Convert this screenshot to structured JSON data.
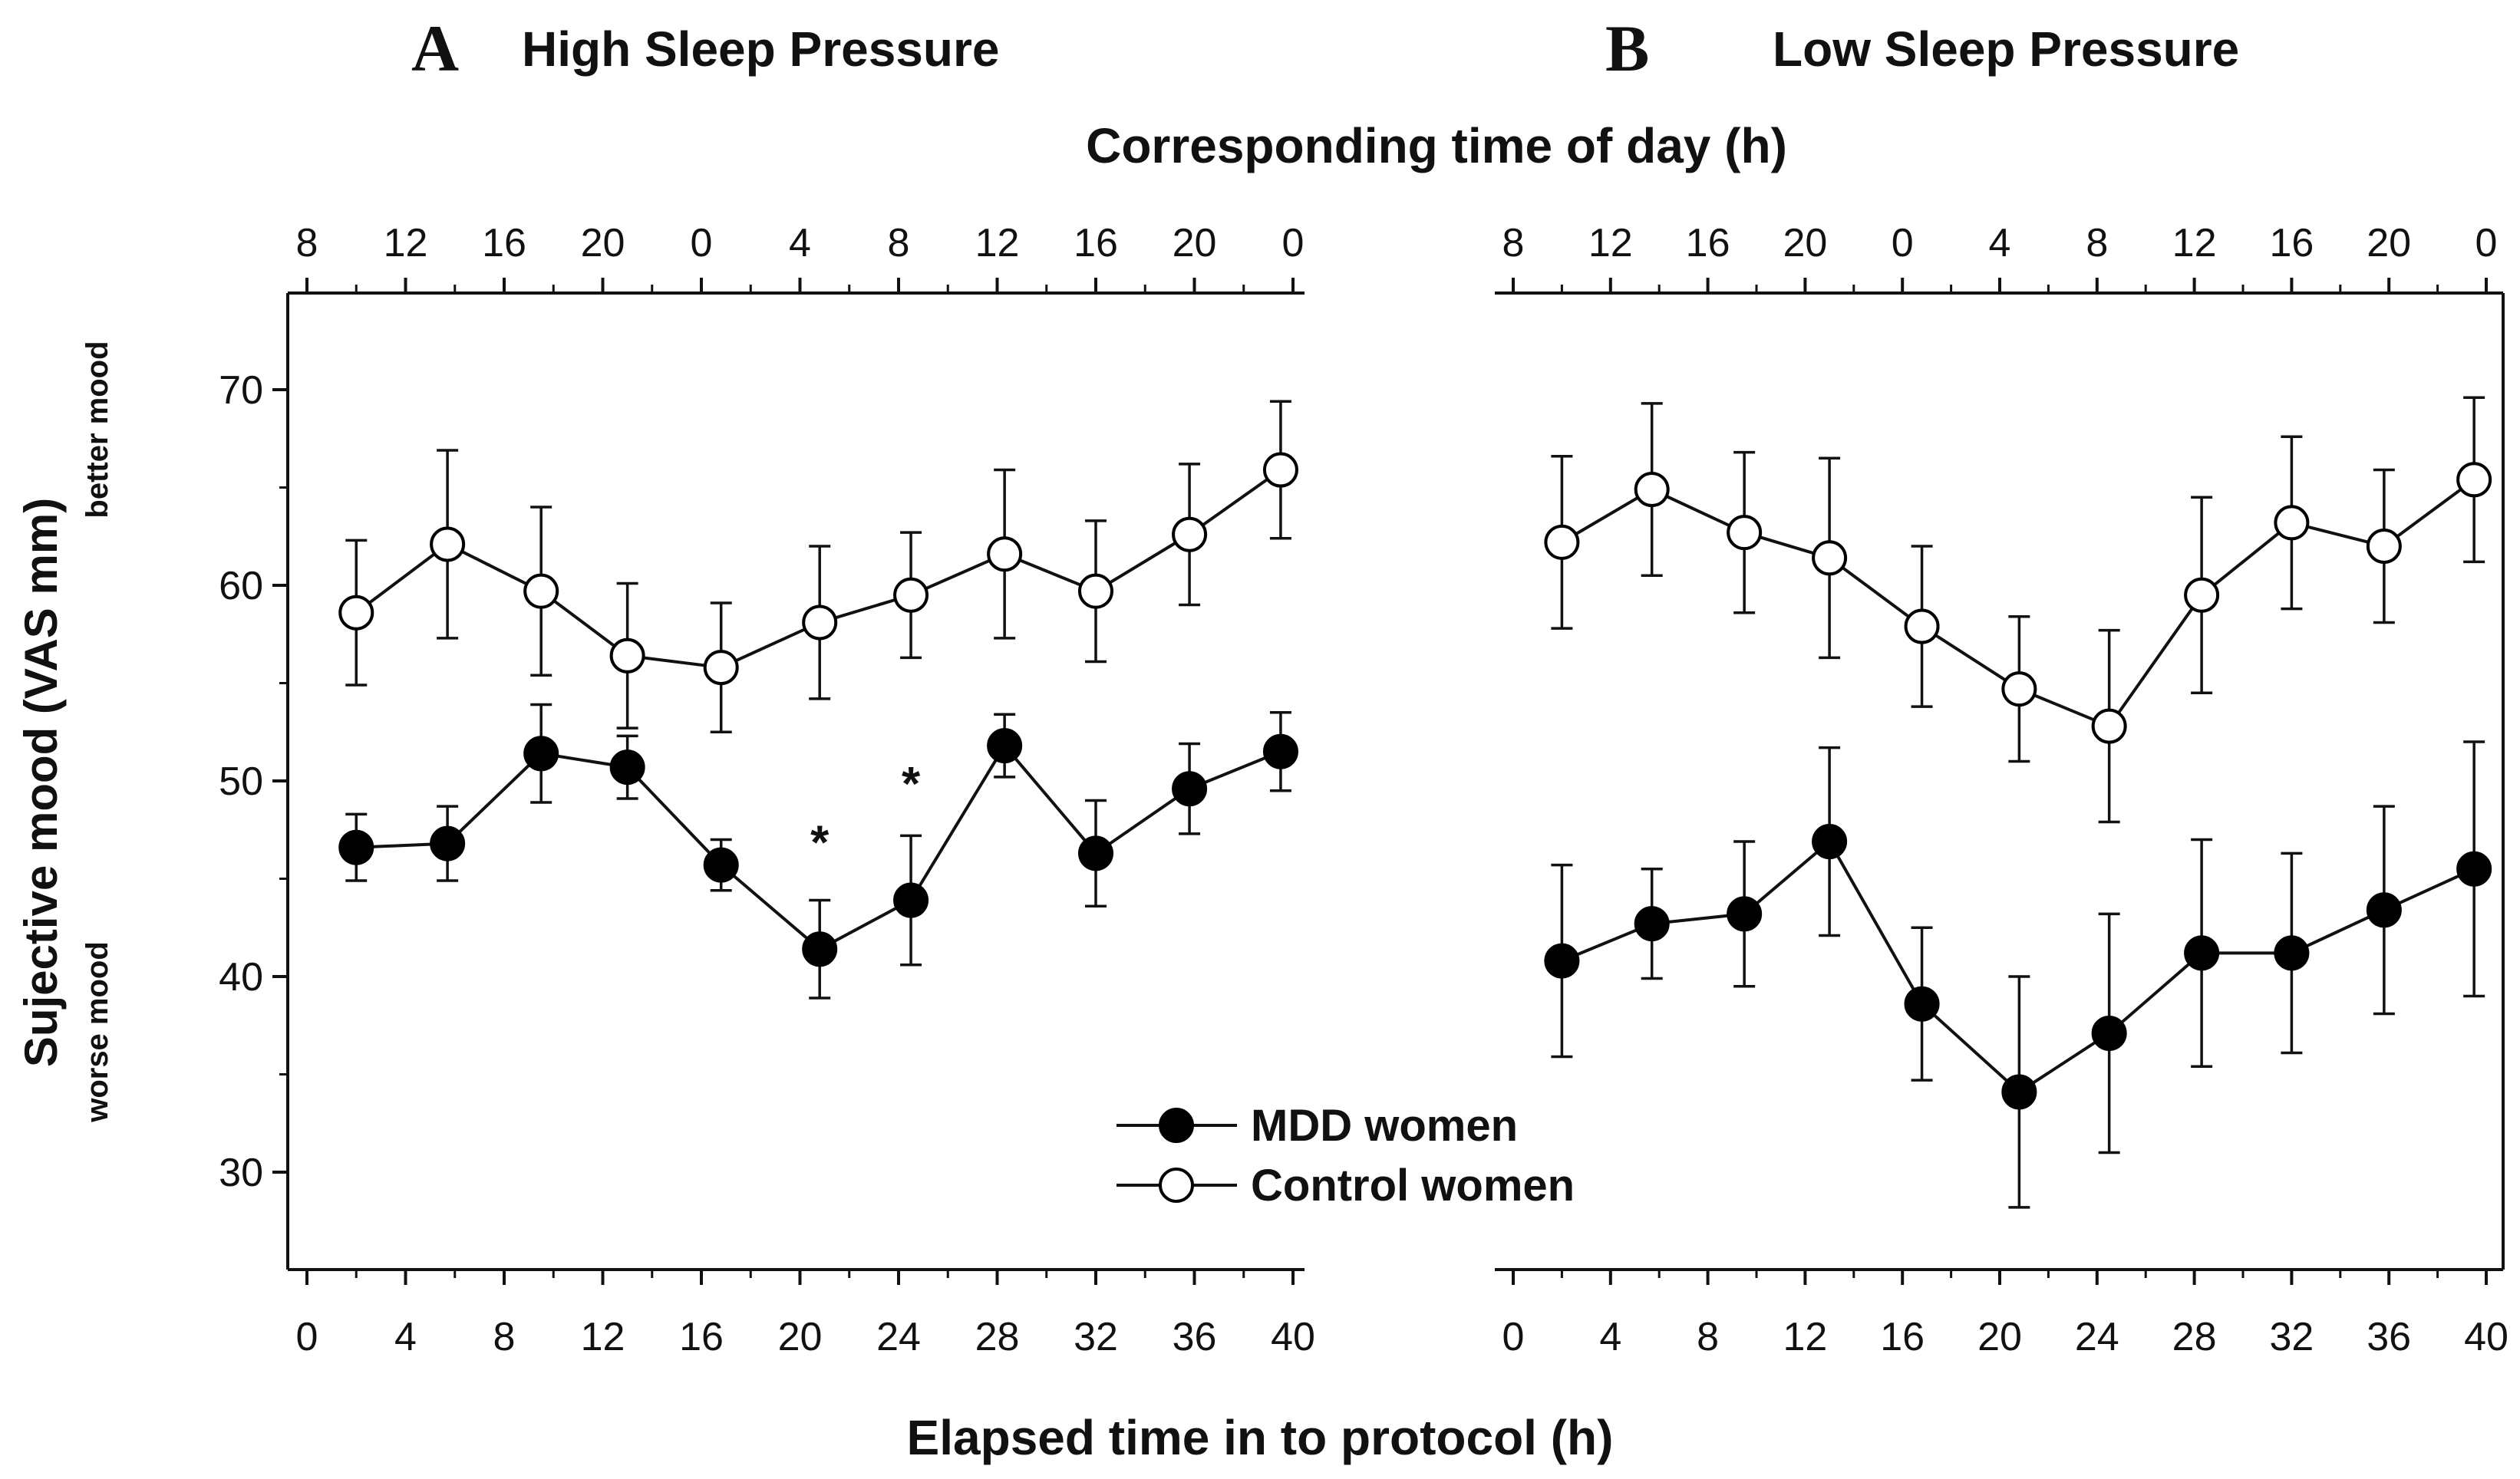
{
  "chart_data": [
    {
      "type": "line",
      "panel": "A",
      "title": "High Sleep Pressure",
      "x_top_label": "Corresponding time of day (h)",
      "x_top_ticks": [
        "8",
        "12",
        "16",
        "20",
        "0",
        "4",
        "8",
        "12",
        "16",
        "20",
        "0"
      ],
      "xlabel": "Elapsed time in to protocol (h)",
      "x_ticks": [
        0,
        4,
        8,
        12,
        16,
        20,
        24,
        28,
        32,
        36,
        40
      ],
      "xlim": [
        0,
        40
      ],
      "ylabel": "Sujective mood (VAS mm)",
      "ylabel_high": "better mood",
      "ylabel_low": "worse mood",
      "y_ticks": [
        30,
        40,
        50,
        60,
        70
      ],
      "ylim": [
        25,
        75
      ],
      "x": [
        2,
        5.7,
        9.5,
        13,
        16.8,
        20.8,
        24.5,
        28.3,
        32,
        35.8,
        39.5
      ],
      "series": [
        {
          "name": "MDD women",
          "marker": "filled",
          "values": [
            46.6,
            46.8,
            51.4,
            50.7,
            45.7,
            41.4,
            43.9,
            51.8,
            46.3,
            49.6,
            51.5
          ],
          "errors": [
            1.7,
            1.9,
            2.5,
            1.6,
            1.3,
            2.5,
            3.3,
            1.6,
            2.7,
            2.3,
            2.0
          ]
        },
        {
          "name": "Control women",
          "marker": "open",
          "values": [
            58.6,
            62.1,
            59.7,
            56.4,
            55.8,
            58.1,
            59.5,
            61.6,
            59.7,
            62.6,
            65.9
          ],
          "errors": [
            3.7,
            4.8,
            4.3,
            3.7,
            3.3,
            3.9,
            3.2,
            4.3,
            3.6,
            3.6,
            3.5
          ]
        }
      ],
      "annotations": [
        {
          "text": "*",
          "x": 20.8,
          "y": 47.2
        },
        {
          "text": "*",
          "x": 24.5,
          "y": 50.2
        }
      ],
      "legend": {
        "position": "bottom-right",
        "entries": [
          "MDD women",
          "Control women"
        ]
      }
    },
    {
      "type": "line",
      "panel": "B",
      "title": "Low Sleep Pressure",
      "x_top_ticks": [
        "8",
        "12",
        "16",
        "20",
        "0",
        "4",
        "8",
        "12",
        "16",
        "20",
        "0"
      ],
      "x_ticks": [
        0,
        4,
        8,
        12,
        16,
        20,
        24,
        28,
        32,
        36,
        40
      ],
      "xlim": [
        0,
        40
      ],
      "ylim": [
        25,
        75
      ],
      "x": [
        2,
        5.7,
        9.5,
        13,
        16.8,
        20.8,
        24.5,
        28.3,
        32,
        35.8,
        39.5
      ],
      "series": [
        {
          "name": "MDD women",
          "marker": "filled",
          "values": [
            40.8,
            42.7,
            43.2,
            46.9,
            38.6,
            34.1,
            37.1,
            41.2,
            41.2,
            43.4,
            45.5
          ],
          "errors": [
            4.9,
            2.8,
            3.7,
            4.8,
            3.9,
            5.9,
            6.1,
            5.8,
            5.1,
            5.3,
            6.5
          ]
        },
        {
          "name": "Control women",
          "marker": "open",
          "values": [
            62.2,
            64.9,
            62.7,
            61.4,
            57.9,
            54.7,
            52.8,
            59.5,
            63.2,
            62.0,
            65.4
          ],
          "errors": [
            4.4,
            4.4,
            4.1,
            5.1,
            4.1,
            3.7,
            4.9,
            5.0,
            4.4,
            3.9,
            4.2
          ]
        }
      ]
    }
  ]
}
